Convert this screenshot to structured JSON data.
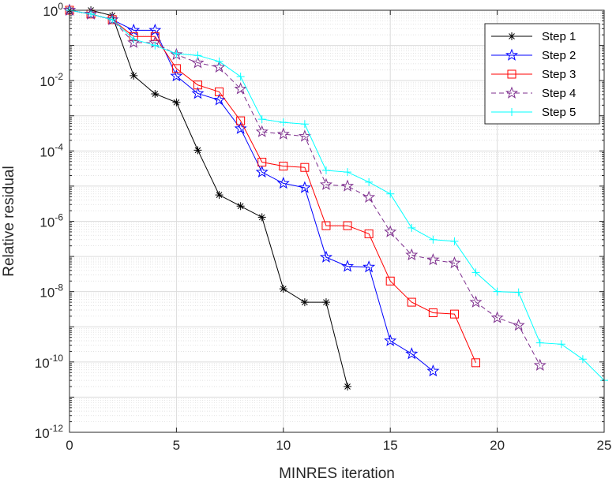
{
  "chart_data": {
    "type": "line",
    "title": "",
    "xlabel": "MINRES iteration",
    "ylabel": "Relative residual",
    "xlim": [
      0,
      25
    ],
    "ylim_exp": [
      -12,
      0
    ],
    "yscale": "log",
    "grid": "major and minor",
    "legend_position": "top-right",
    "xticks": [
      "0",
      "5",
      "10",
      "15",
      "20",
      "25"
    ],
    "yticks": [
      {
        "base": "10",
        "exp": "0"
      },
      {
        "base": "10",
        "exp": "-2"
      },
      {
        "base": "10",
        "exp": "-4"
      },
      {
        "base": "10",
        "exp": "-6"
      },
      {
        "base": "10",
        "exp": "-8"
      },
      {
        "base": "10",
        "exp": "-10"
      },
      {
        "base": "10",
        "exp": "-12"
      }
    ],
    "series": [
      {
        "name": "Step 1",
        "color": "#000000",
        "marker": "asterisk",
        "dash": "",
        "x": [
          0,
          1,
          2,
          3,
          4,
          5,
          6,
          7,
          8,
          9,
          10,
          11,
          12,
          13
        ],
        "y": [
          1,
          1.0,
          0.7,
          0.0138,
          0.0042,
          0.0024,
          0.000105,
          5.6e-06,
          2.7e-06,
          1.3e-06,
          1.2e-08,
          5e-09,
          5e-09,
          2e-11
        ]
      },
      {
        "name": "Step 2",
        "color": "#0000ff",
        "marker": "pentagram",
        "dash": "",
        "x": [
          0,
          1,
          2,
          3,
          4,
          5,
          6,
          7,
          8,
          9,
          10,
          11,
          12,
          13,
          14,
          15,
          16,
          17
        ],
        "y": [
          1,
          0.78,
          0.54,
          0.27,
          0.27,
          0.0135,
          0.0043,
          0.0028,
          0.00043,
          2.5e-05,
          1.2e-05,
          9e-06,
          9.5e-08,
          5.2e-08,
          5e-08,
          4e-10,
          1.7e-10,
          5.5e-11
        ]
      },
      {
        "name": "Step 3",
        "color": "#ff0000",
        "marker": "square",
        "dash": "",
        "x": [
          0,
          1,
          2,
          3,
          4,
          5,
          6,
          7,
          8,
          9,
          10,
          11,
          12,
          13,
          14,
          15,
          16,
          17,
          18,
          19
        ],
        "y": [
          1,
          0.78,
          0.54,
          0.18,
          0.18,
          0.022,
          0.0075,
          0.0048,
          0.00072,
          4.8e-05,
          3.7e-05,
          3.4e-05,
          7.5e-07,
          7.5e-07,
          4.4e-07,
          2e-08,
          5e-09,
          2.5e-09,
          2.3e-09,
          9.5e-11
        ]
      },
      {
        "name": "Step 4",
        "color": "#7e2f8e",
        "marker": "pentagram",
        "dash": "6,4",
        "x": [
          0,
          1,
          2,
          3,
          4,
          5,
          6,
          7,
          8,
          9,
          10,
          11,
          12,
          13,
          14,
          15,
          16,
          17,
          18,
          19,
          20,
          21,
          22
        ],
        "y": [
          1,
          0.78,
          0.54,
          0.12,
          0.12,
          0.055,
          0.032,
          0.024,
          0.0058,
          0.00035,
          0.0003,
          0.00026,
          1.1e-05,
          1e-05,
          4.8e-06,
          5e-07,
          1.1e-07,
          8e-08,
          6.5e-08,
          5e-09,
          1.8e-09,
          1.1e-09,
          8e-11
        ]
      },
      {
        "name": "Step 5",
        "color": "#00ffff",
        "marker": "plus",
        "dash": "",
        "x": [
          0,
          1,
          2,
          3,
          4,
          5,
          6,
          7,
          8,
          9,
          10,
          11,
          12,
          13,
          14,
          15,
          16,
          17,
          18,
          19,
          20,
          21,
          22,
          23,
          24,
          25
        ],
        "y": [
          1,
          0.78,
          0.54,
          0.15,
          0.1,
          0.058,
          0.052,
          0.035,
          0.013,
          0.0008,
          0.00065,
          0.00058,
          2.8e-05,
          2.5e-05,
          1.3e-05,
          6e-06,
          6.5e-07,
          3e-07,
          2.7e-07,
          3.5e-08,
          1e-08,
          9.5e-09,
          3.5e-10,
          3.2e-10,
          1.2e-10,
          3e-11
        ]
      }
    ]
  }
}
